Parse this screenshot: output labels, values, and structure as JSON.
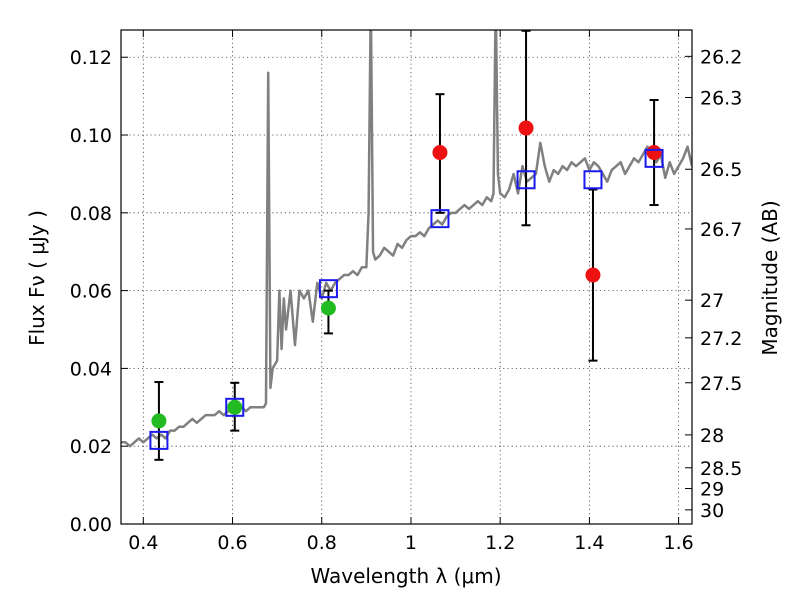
{
  "chart_data": {
    "type": "scatter",
    "xlabel": "Wavelength  λ (μm)",
    "ylabel": "Flux  Fν  ( μJy )",
    "y2label": "Magnitude (AB)",
    "xlim": [
      0.35,
      1.63
    ],
    "ylim": [
      0.0,
      0.127
    ],
    "grid": true,
    "x_ticks": [
      0.4,
      0.6,
      0.8,
      1.0,
      1.2,
      1.4,
      1.6
    ],
    "x_tick_labels": [
      "0.4",
      "0.6",
      "0.8",
      "1",
      "1.2",
      "1.4",
      "1.6"
    ],
    "y_ticks": [
      0.0,
      0.02,
      0.04,
      0.06,
      0.08,
      0.1,
      0.12
    ],
    "y_tick_labels": [
      "0.00",
      "0.02",
      "0.04",
      "0.06",
      "0.08",
      "0.10",
      "0.12"
    ],
    "y2_tick_labels": [
      "26.2",
      "26.3",
      "26.5",
      "26.7",
      "27",
      "27.2",
      "27.5",
      "28",
      "28.5",
      "29",
      "30"
    ],
    "colors": {
      "model": "#808080",
      "green_points": "#22bb22",
      "red_points": "#ee1111",
      "model_photometry": "#1a1aee",
      "error_bars": "#000000"
    },
    "series": [
      {
        "type": "line",
        "x": [
          0.35,
          0.36,
          0.37,
          0.38,
          0.39,
          0.4,
          0.41,
          0.42,
          0.43,
          0.44,
          0.45,
          0.46,
          0.47,
          0.48,
          0.49,
          0.5,
          0.51,
          0.52,
          0.53,
          0.54,
          0.55,
          0.56,
          0.57,
          0.58,
          0.59,
          0.6,
          0.61,
          0.62,
          0.63,
          0.64,
          0.65,
          0.66,
          0.67,
          0.675,
          0.68,
          0.685,
          0.69,
          0.7,
          0.705,
          0.71,
          0.715,
          0.72,
          0.73,
          0.74,
          0.75,
          0.76,
          0.77,
          0.78,
          0.79,
          0.8,
          0.81,
          0.82,
          0.83,
          0.84,
          0.85,
          0.86,
          0.87,
          0.88,
          0.89,
          0.9,
          0.905,
          0.91,
          0.915,
          0.92,
          0.93,
          0.94,
          0.95,
          0.96,
          0.97,
          0.98,
          0.99,
          1.0,
          1.01,
          1.02,
          1.03,
          1.04,
          1.05,
          1.06,
          1.07,
          1.08,
          1.09,
          1.1,
          1.11,
          1.12,
          1.13,
          1.14,
          1.15,
          1.16,
          1.17,
          1.18,
          1.185,
          1.19,
          1.195,
          1.2,
          1.21,
          1.22,
          1.23,
          1.24,
          1.25,
          1.26,
          1.27,
          1.28,
          1.29,
          1.3,
          1.31,
          1.32,
          1.33,
          1.34,
          1.35,
          1.36,
          1.37,
          1.38,
          1.39,
          1.4,
          1.41,
          1.42,
          1.43,
          1.44,
          1.45,
          1.46,
          1.47,
          1.48,
          1.49,
          1.5,
          1.51,
          1.52,
          1.53,
          1.54,
          1.55,
          1.56,
          1.57,
          1.58,
          1.59,
          1.6,
          1.61,
          1.62,
          1.63
        ],
        "y": [
          0.021,
          0.021,
          0.02,
          0.021,
          0.022,
          0.021,
          0.022,
          0.023,
          0.022,
          0.023,
          0.022,
          0.024,
          0.024,
          0.025,
          0.025,
          0.026,
          0.027,
          0.026,
          0.027,
          0.028,
          0.028,
          0.028,
          0.029,
          0.028,
          0.029,
          0.029,
          0.03,
          0.03,
          0.029,
          0.03,
          0.03,
          0.03,
          0.03,
          0.031,
          0.116,
          0.035,
          0.04,
          0.042,
          0.06,
          0.045,
          0.058,
          0.05,
          0.06,
          0.046,
          0.06,
          0.058,
          0.06,
          0.052,
          0.062,
          0.058,
          0.062,
          0.06,
          0.062,
          0.063,
          0.064,
          0.064,
          0.065,
          0.064,
          0.066,
          0.066,
          0.08,
          0.135,
          0.07,
          0.068,
          0.069,
          0.071,
          0.07,
          0.069,
          0.072,
          0.071,
          0.073,
          0.074,
          0.074,
          0.075,
          0.074,
          0.076,
          0.077,
          0.078,
          0.077,
          0.079,
          0.08,
          0.08,
          0.081,
          0.082,
          0.081,
          0.082,
          0.083,
          0.082,
          0.084,
          0.083,
          0.085,
          0.135,
          0.09,
          0.085,
          0.084,
          0.086,
          0.09,
          0.085,
          0.092,
          0.088,
          0.089,
          0.09,
          0.098,
          0.092,
          0.088,
          0.091,
          0.09,
          0.092,
          0.091,
          0.093,
          0.092,
          0.093,
          0.094,
          0.091,
          0.093,
          0.092,
          0.09,
          0.088,
          0.091,
          0.092,
          0.093,
          0.09,
          0.092,
          0.094,
          0.093,
          0.095,
          0.097,
          0.096,
          0.093,
          0.095,
          0.089,
          0.093,
          0.09,
          0.092,
          0.094,
          0.097,
          0.092
        ]
      },
      {
        "type": "scatter",
        "marker": "circle",
        "color": "#22bb22",
        "x": [
          0.435,
          0.605,
          0.815
        ],
        "y": [
          0.0265,
          0.03,
          0.0555
        ],
        "yerr_low": [
          0.01,
          0.006,
          0.0065
        ],
        "yerr_high": [
          0.01,
          0.0063,
          0.0045
        ]
      },
      {
        "type": "scatter",
        "marker": "circle",
        "color": "#ee1111",
        "x": [
          1.065,
          1.258,
          1.408,
          1.545
        ],
        "y": [
          0.0955,
          0.1018,
          0.064,
          0.0955
        ],
        "yerr_low": [
          0.0155,
          0.025,
          0.022,
          0.0135
        ],
        "yerr_high": [
          0.015,
          0.025,
          0.022,
          0.0135
        ]
      },
      {
        "type": "scatter",
        "marker": "square",
        "color": "#1a1aee",
        "x": [
          0.435,
          0.605,
          0.815,
          1.065,
          1.258,
          1.408,
          1.545
        ],
        "y": [
          0.0215,
          0.03,
          0.0605,
          0.0785,
          0.0885,
          0.0885,
          0.094
        ]
      }
    ]
  }
}
